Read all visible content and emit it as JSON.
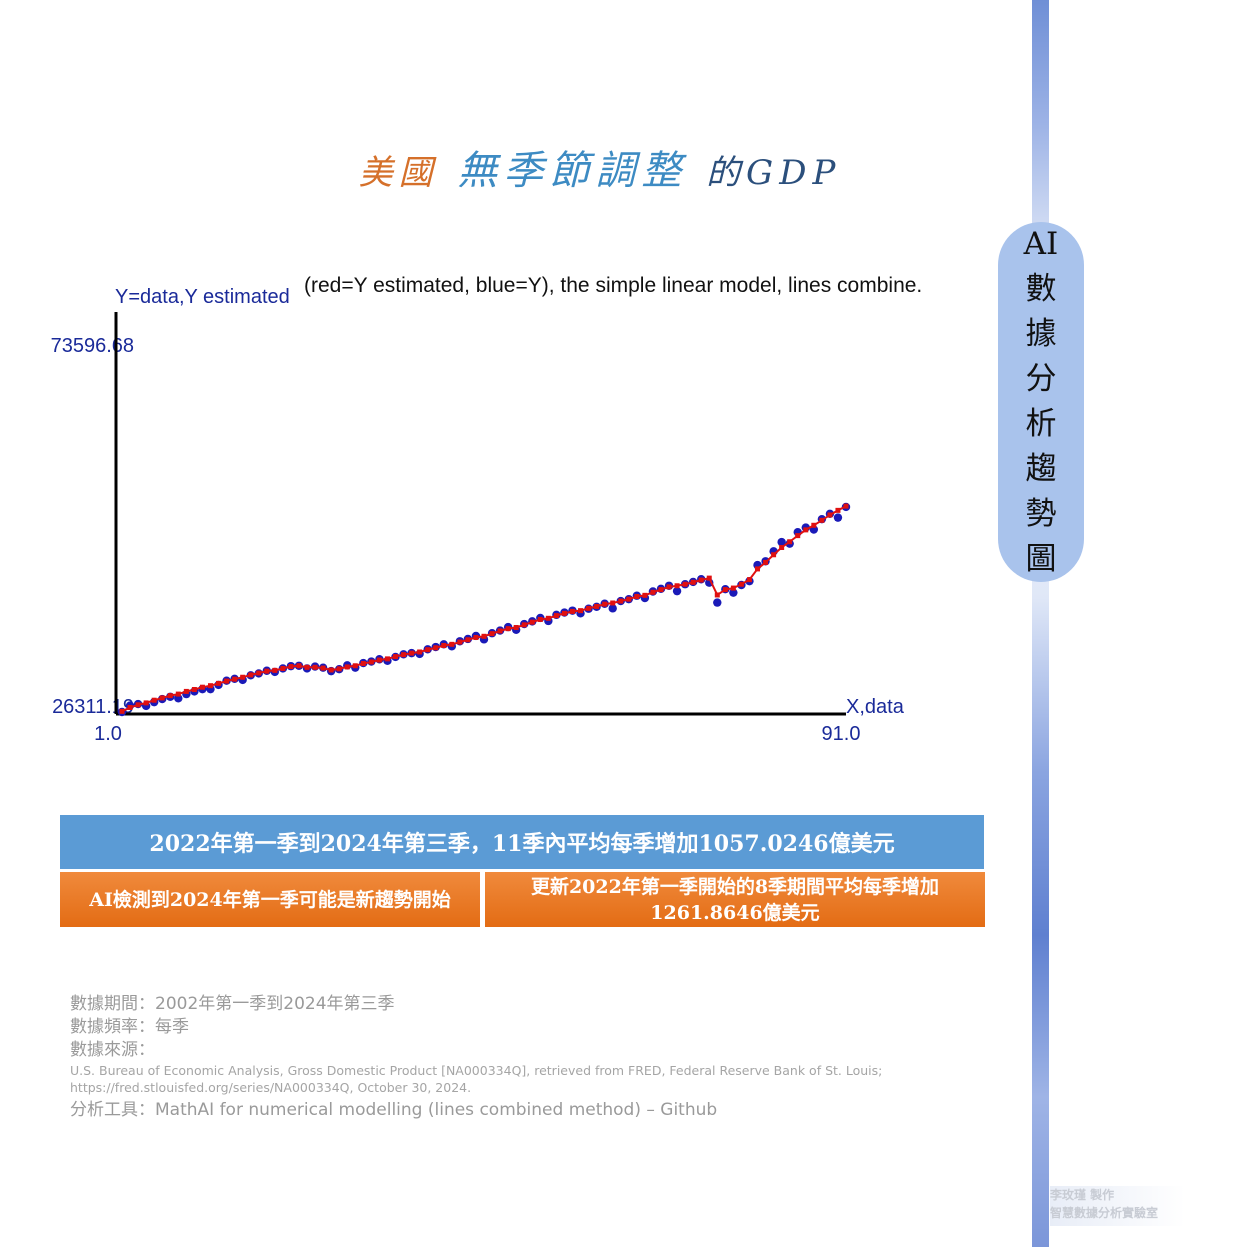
{
  "title": {
    "part1": "美國",
    "part2": "無季節調整",
    "part3": "的GDP"
  },
  "side_badge": [
    "AI",
    "數",
    "據",
    "分",
    "析",
    "趨",
    "勢",
    "圖"
  ],
  "chart_data": {
    "type": "line",
    "title": "(red=Y estimated, blue=Y), the simple linear model, lines combine.",
    "ylabel": "Y=data,Y estimated",
    "xlabel": "X,data",
    "ymax_label": "73596.68",
    "ymin_label": "26311.19",
    "xmin_label": "1.0",
    "xmax_label": "91.0",
    "xlim": [
      1,
      91
    ],
    "ylim": [
      26311.19,
      73596.68
    ],
    "grid": false,
    "series": [
      {
        "color": "#1a1ab8",
        "x": [
          1,
          2,
          3,
          4,
          5,
          6,
          7,
          8,
          9,
          10,
          11,
          12,
          13,
          14,
          15,
          16,
          17,
          18,
          19,
          20,
          21,
          22,
          23,
          24,
          25,
          26,
          27,
          28,
          29,
          30,
          31,
          32,
          33,
          34,
          35,
          36,
          37,
          38,
          39,
          40,
          41,
          42,
          43,
          44,
          45,
          46,
          47,
          48,
          49,
          50,
          51,
          52,
          53,
          54,
          55,
          56,
          57,
          58,
          59,
          60,
          61,
          62,
          63,
          64,
          65,
          66,
          67,
          68,
          69,
          70,
          71,
          72,
          73,
          74,
          75,
          76,
          77,
          78,
          79,
          80,
          81,
          82,
          83,
          84,
          85,
          86,
          87,
          88,
          89,
          90,
          91
        ],
        "values": [
          26311,
          27150,
          27350,
          27100,
          27600,
          28000,
          28300,
          28100,
          28650,
          29000,
          29300,
          29300,
          29850,
          30400,
          30650,
          30500,
          31100,
          31350,
          31700,
          31550,
          32000,
          32300,
          32350,
          32000,
          32250,
          32100,
          31650,
          31900,
          32400,
          32100,
          32700,
          32900,
          33200,
          33000,
          33500,
          33850,
          34000,
          33900,
          34500,
          34800,
          35150,
          34900,
          35550,
          35850,
          36250,
          35800,
          36600,
          36950,
          37400,
          37050,
          37800,
          38150,
          38600,
          38200,
          39000,
          39300,
          39550,
          39200,
          39800,
          40050,
          40450,
          39850,
          40800,
          41050,
          41500,
          41200,
          42050,
          42400,
          42800,
          42100,
          43000,
          43300,
          43650,
          43200,
          40600,
          42350,
          41900,
          42900,
          43400,
          45500,
          46000,
          47300,
          48500,
          48300,
          49800,
          50400,
          50150,
          51500,
          52200,
          51700,
          53100
        ]
      },
      {
        "color": "#e01010",
        "x": [
          1,
          2,
          3,
          4,
          5,
          6,
          7,
          8,
          9,
          10,
          11,
          12,
          13,
          14,
          15,
          16,
          17,
          18,
          19,
          20,
          21,
          22,
          23,
          24,
          25,
          26,
          27,
          28,
          29,
          30,
          31,
          32,
          33,
          34,
          35,
          36,
          37,
          38,
          39,
          40,
          41,
          42,
          43,
          44,
          45,
          46,
          47,
          48,
          49,
          50,
          51,
          52,
          53,
          54,
          55,
          56,
          57,
          58,
          59,
          60,
          61,
          62,
          63,
          64,
          65,
          66,
          67,
          68,
          69,
          70,
          71,
          72,
          73,
          74,
          75,
          76,
          77,
          78,
          79,
          80,
          81,
          82,
          83,
          84,
          85,
          86,
          87,
          88,
          89,
          90,
          91
        ],
        "values": [
          26400,
          26900,
          27250,
          27500,
          27850,
          28150,
          28450,
          28650,
          29000,
          29250,
          29550,
          29750,
          30050,
          30350,
          30600,
          30850,
          31150,
          31400,
          31650,
          31750,
          32000,
          32250,
          32350,
          32150,
          32150,
          32050,
          31800,
          31950,
          32200,
          32350,
          32650,
          32850,
          33100,
          33250,
          33550,
          33800,
          34000,
          34150,
          34450,
          34700,
          35000,
          35150,
          35450,
          35750,
          36050,
          36200,
          36550,
          36900,
          37200,
          37350,
          37700,
          38050,
          38400,
          38550,
          38900,
          39200,
          39450,
          39550,
          39850,
          40100,
          40400,
          40550,
          40800,
          41050,
          41400,
          41550,
          41950,
          42300,
          42650,
          42800,
          43000,
          43250,
          43550,
          43800,
          41600,
          42300,
          42500,
          43000,
          43600,
          45000,
          45850,
          46850,
          47800,
          48550,
          49350,
          50100,
          50700,
          51350,
          52050,
          52650,
          53200
        ]
      }
    ]
  },
  "summary": {
    "blue_box": "2022年第一季到2024年第三季，11季內平均每季增加1057.0246億美元",
    "orange_left": "AI檢測到2024年第一季可能是新趨勢開始",
    "orange_right_line1": "更新2022年第一季開始的8季期間平均每季增加",
    "orange_right_line2": "1261.8646億美元"
  },
  "meta": {
    "period": "數據期間：2002年第一季到2024年第三季",
    "frequency": "數據頻率：每季",
    "source_label": "數據來源：",
    "source_text": "U.S. Bureau of Economic Analysis, Gross Domestic Product [NA000334Q], retrieved from FRED, Federal Reserve Bank of St. Louis; https://fred.stlouisfed.org/series/NA000334Q, October 30, 2024.",
    "tool": "分析工具：MathAI for numerical modelling (lines combined method) – Github"
  },
  "credit": {
    "line1": "李玫瑾 製作",
    "line2": "智慧數據分析實驗室"
  },
  "colors": {
    "accent_blue": "#5b9bd5",
    "accent_orange": "#ed7d31",
    "badge": "#a9c3ec",
    "data_points": "#1a1ab8",
    "estimated_line": "#e01010"
  }
}
